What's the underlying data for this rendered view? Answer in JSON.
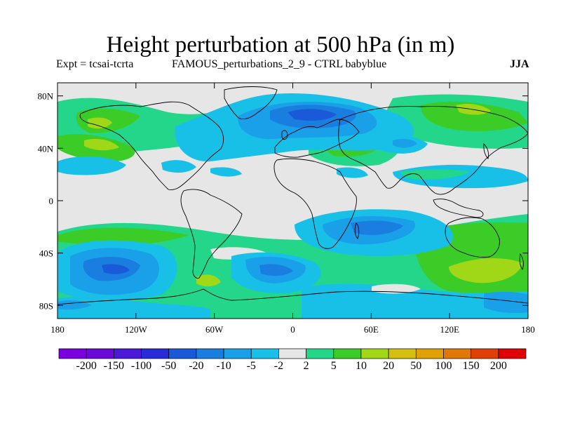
{
  "title": "Height perturbation at 500 hPa (in m)",
  "subtitle_left": "Expt = tcsai-tcrta",
  "subtitle_center": "FAMOUS_perturbations_2_9 - CTRL babyblue",
  "season": "JJA",
  "chart_data": {
    "type": "heatmap",
    "projection": "cylindrical equidistant, global",
    "field": "500 hPa geopotential height perturbation (m)",
    "xlim": [
      -180,
      180
    ],
    "ylim": [
      -90,
      90
    ],
    "x_ticks": [
      "180",
      "120W",
      "60W",
      "0",
      "60E",
      "120E",
      "180"
    ],
    "y_ticks": [
      "80N",
      "40N",
      "0",
      "40S",
      "80S"
    ],
    "colorbar": {
      "colors": [
        "#7a00e0",
        "#6a0ad6",
        "#4a1ad8",
        "#2a2ad8",
        "#1a5ad8",
        "#1a7ee0",
        "#1aa0e8",
        "#18c0e8",
        "#e6e6e6",
        "#24d68a",
        "#3ccc28",
        "#a0d818",
        "#d4c010",
        "#e0a008",
        "#e07808",
        "#e04008",
        "#e00008"
      ],
      "labels": [
        "-200",
        "-150",
        "-100",
        "-50",
        "-20",
        "-10",
        "-5",
        "-2",
        "2",
        "5",
        "10",
        "20",
        "50",
        "100",
        "150",
        "200"
      ]
    },
    "regions": [
      {
        "desc": "Atlantic-Scandinavia negative",
        "lon": 20,
        "lat": 65,
        "min_contour": -20
      },
      {
        "desc": "South Pacific negative",
        "lon": -130,
        "lat": -55,
        "min_contour": -10
      },
      {
        "desc": "South Atlantic negative",
        "lon": -20,
        "lat": -55,
        "min_contour": -10
      },
      {
        "desc": "Indian Ocean negative",
        "lon": 60,
        "lat": -30,
        "min_contour": -5
      },
      {
        "desc": "South of Australia positive",
        "lon": 145,
        "lat": -50,
        "max_contour": 20
      },
      {
        "desc": "Drake Passage positive",
        "lon": -60,
        "lat": -60,
        "max_contour": 20
      },
      {
        "desc": "North Pacific positive",
        "lon": -160,
        "lat": 60,
        "max_contour": 10
      }
    ],
    "grid": false,
    "legend_placement": "bottom"
  }
}
